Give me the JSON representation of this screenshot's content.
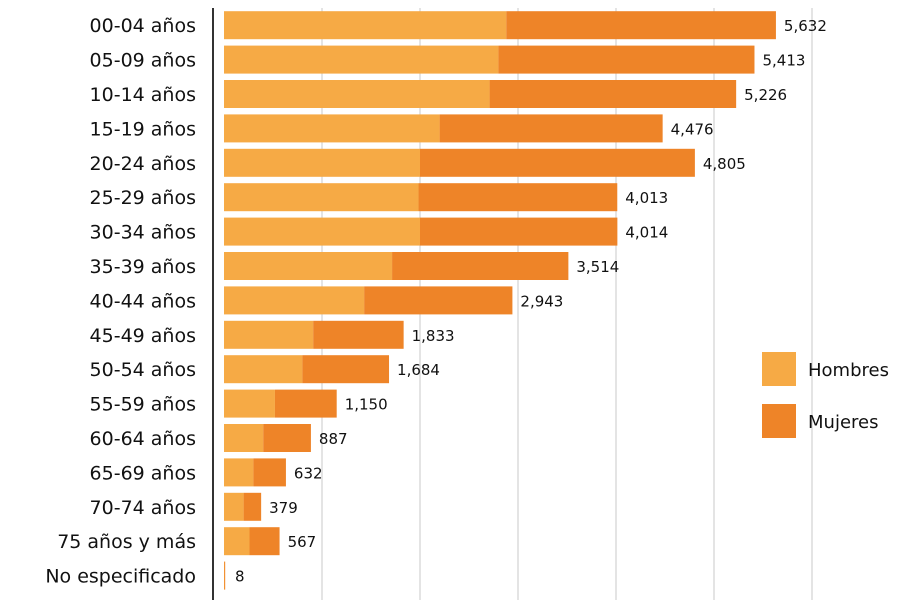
{
  "chart_data": {
    "type": "bar",
    "orientation": "horizontal",
    "stacked": true,
    "categories": [
      "00-04 años",
      "05-09 años",
      "10-14 años",
      "15-19 años",
      "20-24 años",
      "25-29 años",
      "30-34 años",
      "35-39 años",
      "40-44 años",
      "45-49 años",
      "50-54 años",
      "55-59 años",
      "60-64 años",
      "65-69 años",
      "70-74 años",
      "75 años y más",
      "No especificado"
    ],
    "totals": [
      5632,
      5413,
      5226,
      4476,
      4805,
      4013,
      4014,
      3514,
      2943,
      1833,
      1684,
      1150,
      887,
      632,
      379,
      567,
      8
    ],
    "total_labels": [
      "5,632",
      "5,413",
      "5,226",
      "4,476",
      "4,805",
      "4,013",
      "4,014",
      "3,514",
      "2,943",
      "1,833",
      "1,684",
      "1,150",
      "887",
      "632",
      "379",
      "567",
      "8"
    ],
    "series": [
      {
        "name": "Hombres",
        "color": "#F6AA45",
        "values": [
          2880,
          2800,
          2710,
          2200,
          2000,
          1985,
          2000,
          1715,
          1430,
          910,
          800,
          520,
          400,
          300,
          200,
          260,
          4
        ]
      },
      {
        "name": "Mujeres",
        "color": "#EE8428",
        "values": [
          2752,
          2613,
          2516,
          2276,
          2805,
          2028,
          2014,
          1799,
          1513,
          923,
          884,
          630,
          487,
          332,
          179,
          307,
          4
        ]
      }
    ],
    "xlim": [
      0,
      7000
    ],
    "grid": true,
    "legend_position": "right"
  }
}
